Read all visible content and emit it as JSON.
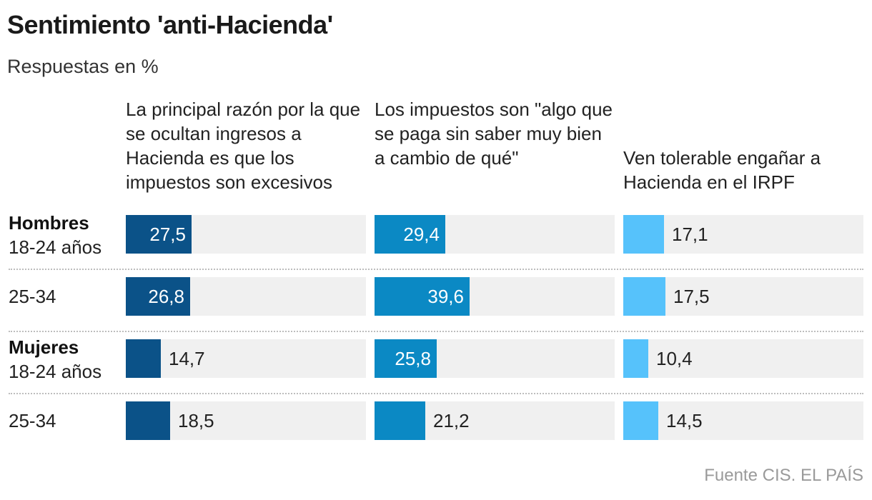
{
  "title": "Sentimiento 'anti-Hacienda'",
  "subtitle": "Respuestas en %",
  "source": "Fuente CIS. EL PAÍS",
  "chart_data": {
    "type": "bar",
    "title": "Sentimiento 'anti-Hacienda'",
    "subtitle": "Respuestas en %",
    "orientation": "horizontal",
    "xlim": [
      0,
      100
    ],
    "grid": false,
    "categories": [
      {
        "group": "Hombres",
        "label": "18-24 años"
      },
      {
        "group": "",
        "label": "25-34"
      },
      {
        "group": "Mujeres",
        "label": "18-24 años"
      },
      {
        "group": "",
        "label": "25-34"
      }
    ],
    "series": [
      {
        "name": "La principal razón por la que se ocultan ingresos a Hacienda es que los impuestos son excesivos",
        "color": "#0b5288",
        "values": [
          27.5,
          26.8,
          14.7,
          18.5
        ],
        "labels": [
          "27,5",
          "26,8",
          "14,7",
          "18,5"
        ]
      },
      {
        "name": "Los impuestos son \"algo que se paga sin saber muy bien a cambio de qué\"",
        "color": "#0b89c4",
        "values": [
          29.4,
          39.6,
          25.8,
          21.2
        ],
        "labels": [
          "29,4",
          "39,6",
          "25,8",
          "21,2"
        ]
      },
      {
        "name": "Ven tolerable engañar a Hacienda en el IRPF",
        "color": "#56c2fb",
        "values": [
          17.1,
          17.5,
          10.4,
          14.5
        ],
        "labels": [
          "17,1",
          "17,5",
          "10,4",
          "14,5"
        ]
      }
    ]
  }
}
